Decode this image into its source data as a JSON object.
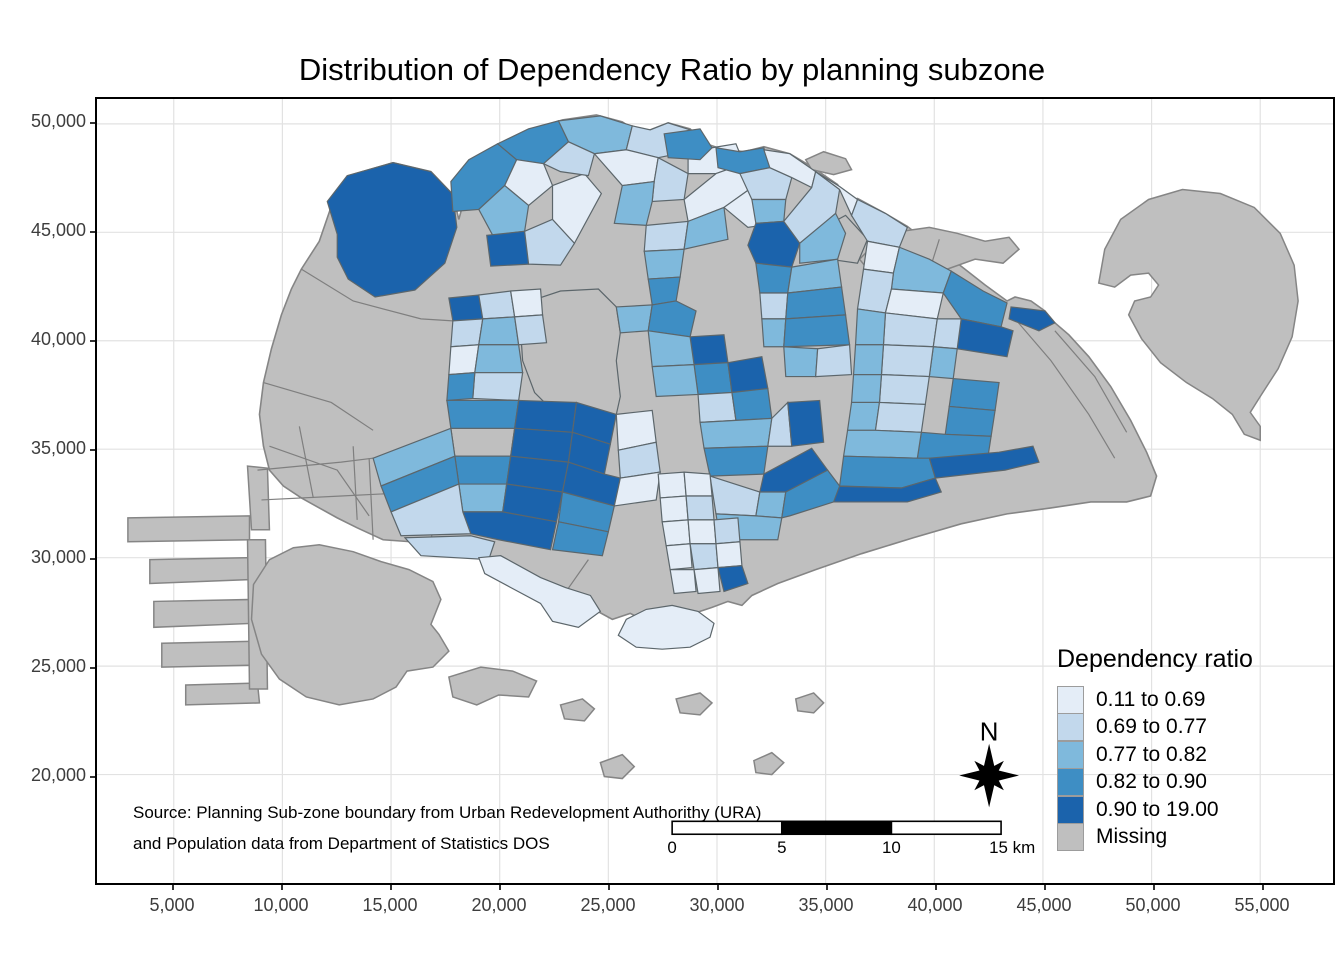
{
  "title": "Distribution of Dependency Ratio by planning subzone",
  "source": {
    "line1": "Source: Planning Sub-zone boundary from Urban Redevelopment Authorithy (URA)",
    "line2": "and Population data from Department of Statistics DOS"
  },
  "north": {
    "label": "N"
  },
  "legend": {
    "title": "Dependency ratio",
    "items": [
      {
        "label": "0.11 to 0.69",
        "color": "#E4EDF7"
      },
      {
        "label": "0.69 to 0.77",
        "color": "#C2D8EC"
      },
      {
        "label": "0.77 to 0.82",
        "color": "#7FB9DC"
      },
      {
        "label": "0.82 to 0.90",
        "color": "#3E8EC4"
      },
      {
        "label": "0.90 to 19.00",
        "color": "#1B63AC"
      },
      {
        "label": "Missing",
        "color": "#BFBFBF"
      }
    ]
  },
  "axes": {
    "x_ticks": [
      "5,000",
      "10,000",
      "15,000",
      "20,000",
      "25,000",
      "30,000",
      "35,000",
      "40,000",
      "45,000",
      "50,000",
      "55,000"
    ],
    "y_ticks": [
      "50,000",
      "45,000",
      "40,000",
      "35,000",
      "30,000",
      "25,000",
      "20,000"
    ]
  },
  "scale_bar": {
    "labels": [
      "0",
      "5",
      "10",
      "15 km"
    ],
    "segment_colors": [
      "#ffffff",
      "#000000",
      "#ffffff"
    ]
  },
  "chart_data": {
    "type": "choropleth",
    "title": "Distribution of Dependency Ratio by planning subzone",
    "legend_title": "Dependency ratio",
    "classes": [
      {
        "label": "0.11 to 0.69",
        "color": "#E4EDF7"
      },
      {
        "label": "0.69 to 0.77",
        "color": "#C2D8EC"
      },
      {
        "label": "0.77 to 0.82",
        "color": "#7FB9DC"
      },
      {
        "label": "0.82 to 0.90",
        "color": "#3E8EC4"
      },
      {
        "label": "0.90 to 19.00",
        "color": "#1B63AC"
      },
      {
        "label": "Missing",
        "color": "#BFBFBF"
      }
    ],
    "x_axis_ticks": [
      5000,
      10000,
      15000,
      20000,
      25000,
      30000,
      35000,
      40000,
      45000,
      50000,
      55000
    ],
    "y_axis_ticks": [
      20000,
      25000,
      30000,
      35000,
      40000,
      45000,
      50000
    ],
    "scale_bar_km": [
      0,
      5,
      10,
      15
    ],
    "grid": true,
    "legend_position": "bottom-right"
  },
  "map": {
    "colors": {
      "c1": "#E4EDF7",
      "c2": "#C2D8EC",
      "c3": "#7FB9DC",
      "c4": "#3E8EC4",
      "c5": "#1B63AC",
      "missing": "#BFBFBF",
      "gridline": "#E2E2E2",
      "coast_stroke": "#858585",
      "cell_stroke": "#5c666b"
    },
    "mainland": "300,268 318,240 330,205 348,174 392,161 430,170 452,193 458,218 464,196 470,168 486,150 512,136 536,126 562,118 596,113 622,120 634,128 630,142 642,146 650,128 668,121 690,127 706,142 718,146 744,150 764,145 790,152 812,165 838,183 846,200 858,197 884,211 908,225 932,244 958,262 986,284 1008,300 1016,296 1032,300 1046,310 1056,322 1070,334 1090,356 1112,386 1132,420 1148,452 1158,476 1152,496 1128,502 1092,502 1052,508 1008,514 962,524 914,538 862,554 816,570 778,584 752,596 742,606 728,602 712,608 694,614 672,620 650,624 630,614 612,620 590,608 566,600 544,586 520,574 494,562 468,554 440,548 410,542 382,540 356,528 336,518 318,508 300,498 282,486 268,470 262,446 258,414 262,382 270,348 280,314 290,288",
    "gray_islands": [
      "246,466 266,468 268,530 250,530",
      "126,518 248,516 248,540 126,542",
      "148,560 250,558 250,580 148,584",
      "152,602 252,600 252,624 152,628",
      "160,644 254,642 254,666 160,668",
      "184,686 256,684 258,704 184,706",
      "246,540 264,540 266,690 248,690",
      "252,585 268,560 292,548 318,545 352,552 380,562 408,570 432,582 440,600 430,625 438,635 448,652 432,668 406,672 395,688 372,700 338,706 305,698 278,680 260,655 250,620",
      "448,678 480,668 512,672 536,682 528,698 498,696 476,706 452,698",
      "560,706 582,700 594,710 584,722 564,720",
      "600,764 622,756 634,768 622,780 604,778",
      "676,700 700,694 712,704 700,716 680,714",
      "754,762 772,754 784,764 772,776 756,774",
      "796,700 814,694 824,704 814,714 798,712",
      "806,158 824,150 846,157 852,168 834,173 812,168",
      "860,258 878,240 902,230 930,226 958,232 986,240 1010,236 1020,248 1004,262 976,258 948,268 918,276 890,274 868,268",
      "1100,282 1106,248 1122,218 1150,198 1184,188 1222,192 1256,206 1282,232 1296,264 1300,300 1294,336 1280,368 1262,396 1252,412 1262,426 1262,440 1246,434 1234,414 1214,398 1188,382 1162,362 1143,338 1130,314 1136,300 1152,296 1160,284 1150,272 1132,274 1116,286"
    ],
    "texture_lines": [
      "300,268 352,300 420,318 452,320",
      "268,446 336,470 368,516",
      "298,426 312,498",
      "262,382 330,402 372,430",
      "256,470 340,462 420,452 500,446 556,442",
      "260,500 340,496 420,492 496,488 552,484",
      "352,446 356,520",
      "1016,318 1052,360 1090,414 1116,458",
      "1056,330 1096,376 1128,432",
      "940,238 930,270",
      "372,540 368,458",
      "430,548 436,456",
      "560,600 588,560"
    ],
    "gray_cells": [
      "530,300 560,290 598,288 616,306 620,332 616,360 620,396 616,414 588,424 556,414 534,392 522,360 520,330",
      "820,228 846,214 868,238 858,262 830,258 818,244",
      "450,428 514,428 510,456 454,456"
    ],
    "cells": [
      {
        "c": "c5",
        "p": "336,233 326,200 346,174 392,161 430,170 452,193 456,226 444,262 414,289 374,296 347,278 336,256"
      },
      {
        "c": "c4",
        "p": "452,210 450,180 468,158 497,142 516,158 504,184 478,208"
      },
      {
        "c": "c4",
        "p": "497,142 528,127 558,119 568,140 543,162 516,158"
      },
      {
        "c": "c1",
        "p": "516,158 543,162 552,184 528,204 504,184"
      },
      {
        "c": "c3",
        "p": "478,208 504,184 528,204 524,230 492,234"
      },
      {
        "c": "c5",
        "p": "486,234 524,230 528,263 490,265"
      },
      {
        "c": "c2",
        "p": "524,230 552,218 574,242 560,264 528,263"
      },
      {
        "c": "c1",
        "p": "552,184 584,172 601,192 574,242 552,218"
      },
      {
        "c": "c3",
        "p": "558,119 600,114 632,124 626,148 594,152 568,140"
      },
      {
        "c": "c2",
        "p": "568,140 594,152 588,174 560,170 543,162"
      },
      {
        "c": "c2",
        "p": "632,124 650,128 668,121 690,128 688,150 658,156 626,148"
      },
      {
        "c": "c1",
        "p": "626,148 658,156 654,180 622,184 594,152"
      },
      {
        "c": "c1",
        "p": "688,150 712,146 736,142 744,162 716,172 688,172"
      },
      {
        "c": "c2",
        "p": "658,156 688,172 684,198 652,200 654,180"
      },
      {
        "c": "c3",
        "p": "622,184 654,180 652,200 646,224 614,222"
      },
      {
        "c": "c1",
        "p": "684,198 716,172 744,162 752,186 724,206 688,220"
      },
      {
        "c": "c2",
        "p": "646,224 688,220 684,248 644,250"
      },
      {
        "c": "c3",
        "p": "688,220 724,206 728,238 684,248"
      },
      {
        "c": "c1",
        "p": "752,186 780,196 776,222 748,226 724,206"
      },
      {
        "c": "c3",
        "p": "644,250 684,248 680,276 648,278"
      },
      {
        "c": "c4",
        "p": "648,278 680,276 676,300 652,304"
      },
      {
        "c": "c4",
        "p": "664,132 700,127 712,146 700,158 668,156"
      },
      {
        "c": "c4",
        "p": "716,146 740,150 764,146 770,166 740,172 718,166"
      },
      {
        "c": "c2",
        "p": "740,172 770,166 792,176 786,198 752,198"
      },
      {
        "c": "c1",
        "p": "770,166 764,148 790,152 816,170 812,186 792,176"
      },
      {
        "c": "c3",
        "p": "752,198 786,198 784,220 756,222"
      },
      {
        "c": "c5",
        "p": "756,222 784,220 800,242 792,266 756,262 748,244"
      },
      {
        "c": "c2",
        "p": "784,220 812,186 816,170 840,188 836,212 806,238 800,242"
      },
      {
        "c": "c3",
        "p": "800,242 836,212 846,232 838,258 800,262"
      },
      {
        "c": "c1",
        "p": "816,170 840,185 858,198 852,214 840,188"
      },
      {
        "c": "c5",
        "p": "448,297 478,294 482,318 452,320"
      },
      {
        "c": "c2",
        "p": "452,320 482,318 478,344 450,346"
      },
      {
        "c": "c2",
        "p": "478,294 510,290 514,316 482,318"
      },
      {
        "c": "c1",
        "p": "510,290 540,288 542,314 514,316"
      },
      {
        "c": "c3",
        "p": "482,318 514,316 518,344 478,344"
      },
      {
        "c": "c2",
        "p": "514,316 542,314 546,342 518,344"
      },
      {
        "c": "c1",
        "p": "450,346 478,344 474,372 448,374"
      },
      {
        "c": "c3",
        "p": "478,344 518,344 522,372 474,372"
      },
      {
        "c": "c2",
        "p": "474,372 522,372 518,400 472,398"
      },
      {
        "c": "c4",
        "p": "448,374 474,372 472,398 446,400"
      },
      {
        "c": "c3",
        "p": "616,306 652,304 648,330 620,332"
      },
      {
        "c": "c4",
        "p": "652,304 676,300 696,310 690,336 648,330"
      },
      {
        "c": "c5",
        "p": "690,336 724,334 728,362 694,364"
      },
      {
        "c": "c3",
        "p": "648,330 690,336 694,364 652,366"
      },
      {
        "c": "c4",
        "p": "694,364 728,362 732,392 698,394"
      },
      {
        "c": "c5",
        "p": "728,362 762,356 768,388 732,392"
      },
      {
        "c": "c3",
        "p": "652,366 694,364 698,394 656,396"
      },
      {
        "c": "c2",
        "p": "698,394 732,392 736,420 700,422"
      },
      {
        "c": "c4",
        "p": "732,392 768,388 772,418 736,420"
      },
      {
        "c": "c4",
        "p": "756,262 792,266 788,292 760,292"
      },
      {
        "c": "c3",
        "p": "792,266 838,258 842,286 788,292"
      },
      {
        "c": "c2",
        "p": "760,292 788,292 786,318 762,318"
      },
      {
        "c": "c4",
        "p": "788,292 842,286 846,314 786,318"
      },
      {
        "c": "c3",
        "p": "762,318 786,318 784,346 764,346"
      },
      {
        "c": "c4",
        "p": "786,318 846,314 850,344 784,346"
      },
      {
        "c": "c3",
        "p": "784,346 818,348 816,376 786,376"
      },
      {
        "c": "c2",
        "p": "818,348 850,344 852,374 816,376"
      },
      {
        "c": "c2",
        "p": "858,198 886,212 908,226 900,246 868,240 852,214"
      },
      {
        "c": "c1",
        "p": "868,240 900,246 894,272 864,268"
      },
      {
        "c": "c3",
        "p": "900,246 930,258 952,270 944,292 892,288 894,272"
      },
      {
        "c": "c2",
        "p": "864,268 894,272 892,288 886,312 858,308"
      },
      {
        "c": "c1",
        "p": "892,288 944,292 938,318 886,312"
      },
      {
        "c": "c2",
        "p": "886,312 938,318 934,346 884,344"
      },
      {
        "c": "c3",
        "p": "858,308 886,312 884,344 856,344"
      },
      {
        "c": "c4",
        "p": "952,270 984,290 1008,302 1002,326 962,318 944,292"
      },
      {
        "c": "c5",
        "p": "962,318 1002,326 1014,330 1008,356 958,348"
      },
      {
        "c": "c2",
        "p": "938,318 962,318 958,348 934,346"
      },
      {
        "c": "c3",
        "p": "934,346 958,348 954,378 930,376"
      },
      {
        "c": "c2",
        "p": "884,344 934,346 930,376 882,374"
      },
      {
        "c": "c3",
        "p": "856,344 884,344 882,374 854,374"
      },
      {
        "c": "c4",
        "p": "954,378 1000,382 996,410 950,406"
      },
      {
        "c": "c2",
        "p": "882,374 930,376 926,404 880,402"
      },
      {
        "c": "c3",
        "p": "854,374 882,374 880,402 852,402"
      },
      {
        "c": "c4",
        "p": "950,406 996,410 992,436 946,434"
      },
      {
        "c": "c5",
        "p": "1012,306 1046,310 1056,322 1040,330 1010,318"
      },
      {
        "c": "c3",
        "p": "852,402 880,402 876,430 848,430"
      },
      {
        "c": "c2",
        "p": "880,402 926,404 922,432 876,430"
      },
      {
        "c": "c4",
        "p": "922,432 946,434 992,436 988,462 918,458"
      },
      {
        "c": "c5",
        "p": "930,458 1000,452 1034,446 1040,462 1006,470 936,478"
      },
      {
        "c": "c3",
        "p": "848,430 876,430 922,432 918,458 844,456"
      },
      {
        "c": "c4",
        "p": "844,456 918,458 930,458 936,478 902,488 840,486"
      },
      {
        "c": "c5",
        "p": "828,486 902,488 936,478 942,492 908,502 834,502"
      },
      {
        "c": "c3",
        "p": "700,422 736,420 772,418 768,446 704,448"
      },
      {
        "c": "c2",
        "p": "768,446 772,418 788,402 792,446"
      },
      {
        "c": "c5",
        "p": "788,402 820,400 824,442 792,446"
      },
      {
        "c": "c4",
        "p": "704,448 768,446 764,474 710,476"
      },
      {
        "c": "c5",
        "p": "764,474 812,448 828,470 786,492 760,492"
      },
      {
        "c": "c2",
        "p": "710,476 760,492 756,516 716,514"
      },
      {
        "c": "c3",
        "p": "760,492 786,492 782,518 756,516"
      },
      {
        "c": "c4",
        "p": "786,492 828,470 840,486 834,502 790,516 782,518"
      },
      {
        "c": "c3",
        "p": "716,514 756,516 782,518 778,540 720,540"
      },
      {
        "c": "c4",
        "p": "446,400 518,400 514,428 450,428"
      },
      {
        "c": "c5",
        "p": "518,400 576,402 572,432 514,428"
      },
      {
        "c": "c5",
        "p": "576,402 616,414 610,444 572,432"
      },
      {
        "c": "c5",
        "p": "514,428 572,432 568,462 510,456"
      },
      {
        "c": "c5",
        "p": "572,432 610,444 604,474 568,462"
      },
      {
        "c": "c4",
        "p": "454,456 510,456 506,484 458,484"
      },
      {
        "c": "c5",
        "p": "510,456 568,462 562,492 506,484"
      },
      {
        "c": "c5",
        "p": "568,462 604,474 620,478 614,506 562,492"
      },
      {
        "c": "c3",
        "p": "458,484 506,484 502,512 462,512"
      },
      {
        "c": "c5",
        "p": "506,484 562,492 556,522 502,512"
      },
      {
        "c": "c4",
        "p": "562,492 614,506 608,532 558,522"
      },
      {
        "c": "c5",
        "p": "502,512 556,522 550,550 498,540 470,534 462,512"
      },
      {
        "c": "c4",
        "p": "558,522 608,532 602,556 552,550"
      },
      {
        "c": "c1",
        "p": "616,414 652,410 656,442 618,450"
      },
      {
        "c": "c2",
        "p": "618,450 656,442 660,472 620,478"
      },
      {
        "c": "c1",
        "p": "620,478 660,472 656,500 614,506"
      },
      {
        "c": "c1",
        "p": "658,474 684,472 686,496 660,498"
      },
      {
        "c": "c1",
        "p": "684,472 710,474 712,496 686,496"
      },
      {
        "c": "c1",
        "p": "660,498 686,496 688,520 662,522"
      },
      {
        "c": "c2",
        "p": "686,496 712,496 714,520 688,520"
      },
      {
        "c": "c1",
        "p": "662,522 688,520 690,544 666,546"
      },
      {
        "c": "c1",
        "p": "688,520 714,520 716,544 690,544"
      },
      {
        "c": "c2",
        "p": "714,520 738,518 740,542 716,544"
      },
      {
        "c": "c1",
        "p": "666,546 690,544 692,568 670,570"
      },
      {
        "c": "c2",
        "p": "690,544 716,544 718,568 694,570"
      },
      {
        "c": "c1",
        "p": "716,544 740,542 742,566 718,568"
      },
      {
        "c": "c1",
        "p": "670,570 694,570 696,592 674,594"
      },
      {
        "c": "c1",
        "p": "694,570 718,568 720,592 698,594"
      },
      {
        "c": "c5",
        "p": "718,568 742,566 748,584 724,592"
      },
      {
        "c": "c3",
        "p": "372,458 450,428 454,456 380,486"
      },
      {
        "c": "c4",
        "p": "380,486 454,456 458,484 390,512"
      },
      {
        "c": "c2",
        "p": "390,512 458,484 462,512 470,534 400,536"
      },
      {
        "c": "c2",
        "p": "404,538 470,536 494,542 488,560 420,556"
      },
      {
        "c": "c1",
        "p": "478,558 500,556 540,578 565,588 590,596 600,612 578,628 552,622 540,604 510,588 484,574"
      },
      {
        "c": "c1",
        "p": "618,636 626,620 646,610 672,606 698,612 714,624 710,638 690,648 662,650 636,648"
      }
    ]
  }
}
